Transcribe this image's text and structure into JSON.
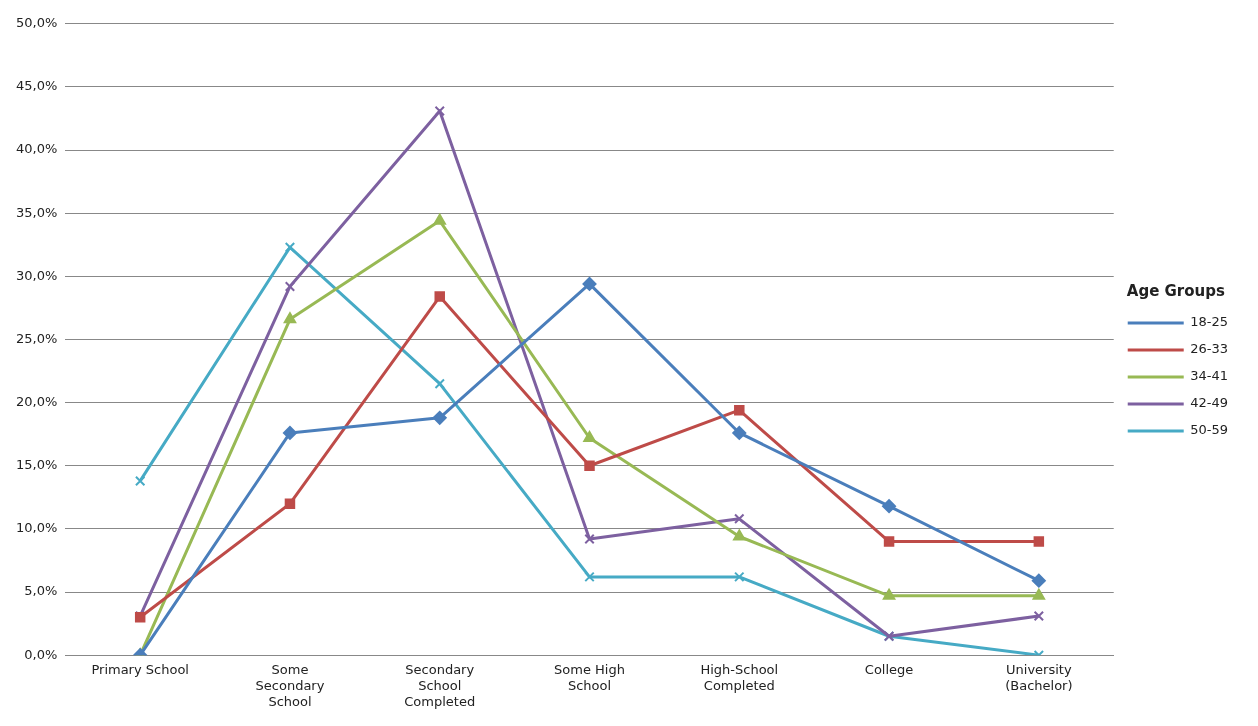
{
  "chart_data": {
    "type": "line",
    "categories": [
      "Primary School",
      "Some Secondary School",
      "Secondary School Completed",
      "Some High School",
      "High-School Completed",
      "College",
      "University (Bachelor)"
    ],
    "series": [
      {
        "name": "18-25",
        "color": "#4a7ebb",
        "marker": "diamond",
        "values": [
          0,
          17.6,
          18.8,
          29.4,
          17.6,
          11.8,
          5.9
        ]
      },
      {
        "name": "26-33",
        "color": "#be4b48",
        "marker": "square",
        "values": [
          3.0,
          12.0,
          28.4,
          15.0,
          19.4,
          9.0,
          9.0
        ]
      },
      {
        "name": "34-41",
        "color": "#98b954",
        "marker": "triangle",
        "values": [
          0,
          26.6,
          34.4,
          17.2,
          9.4,
          4.7,
          4.7
        ]
      },
      {
        "name": "42-49",
        "color": "#7d60a0",
        "marker": "cross",
        "values": [
          3.1,
          29.2,
          43.1,
          9.2,
          10.8,
          1.5,
          3.1
        ]
      },
      {
        "name": "50-59",
        "color": "#46aac5",
        "marker": "cross",
        "values": [
          13.8,
          32.3,
          21.5,
          6.2,
          6.2,
          1.5,
          0
        ]
      }
    ],
    "ylim": [
      0,
      50
    ],
    "yticks": [
      {
        "value": 0,
        "label": "0,0%"
      },
      {
        "value": 5,
        "label": "5,0%"
      },
      {
        "value": 10,
        "label": "10,0%"
      },
      {
        "value": 15,
        "label": "15,0%"
      },
      {
        "value": 20,
        "label": "20,0%"
      },
      {
        "value": 25,
        "label": "25,0%"
      },
      {
        "value": 30,
        "label": "30,0%"
      },
      {
        "value": 35,
        "label": "35,0%"
      },
      {
        "value": 40,
        "label": "40,0%"
      },
      {
        "value": 45,
        "label": "45,0%"
      },
      {
        "value": 50,
        "label": "50,0%"
      }
    ],
    "grid": "y",
    "legend": "right",
    "legend_title": "Age Groups",
    "line_style": "solid"
  }
}
